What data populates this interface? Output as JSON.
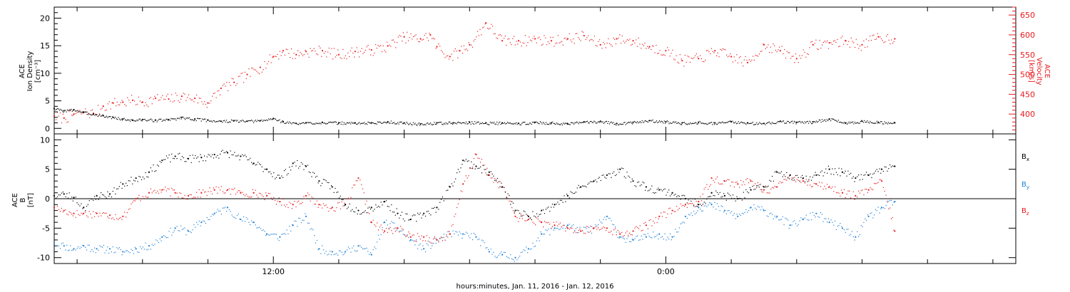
{
  "xlabel": "hours:minutes, Jan. 11, 2016 - Jan. 12, 2016",
  "colors": {
    "black": "#000000",
    "red": "#e8191c",
    "blue": "#1f7fd6"
  },
  "chart_data": [
    {
      "type": "scatter",
      "panel": "top",
      "ylabel_left": [
        "ACE",
        "Ion Density",
        "[cm⁻³]"
      ],
      "ylabel_right": [
        "ACE",
        "Velocity",
        "[km/s]"
      ],
      "x_unit": "hours since Jan. 11, 2016 00:00",
      "x_ticks": [
        "12:00",
        "0:00"
      ],
      "x_tick_hours": [
        12,
        24
      ],
      "xlim": [
        5.3,
        34.7
      ],
      "y_left": {
        "lim": [
          -1,
          22
        ],
        "ticks": [
          0,
          5,
          10,
          15,
          20
        ]
      },
      "y_right": {
        "lim": [
          350,
          670
        ],
        "ticks": [
          400,
          450,
          500,
          550,
          600,
          650
        ]
      },
      "grid": false,
      "series": [
        {
          "key": "density",
          "axis": "left",
          "color": "black",
          "x": [
            5.3,
            5.6,
            5.9,
            6.2,
            6.5,
            6.8,
            7.1,
            7.4,
            7.7,
            8.0,
            8.4,
            8.8,
            9.2,
            9.6,
            10.0,
            10.4,
            10.8,
            11.2,
            11.6,
            12.0,
            12.3,
            12.7,
            13.0,
            13.5,
            14.0,
            14.5,
            15.0,
            15.5,
            16.0,
            16.5,
            17.0,
            17.5,
            18.0,
            18.5,
            19.0,
            19.5,
            20.0,
            20.5,
            21.0,
            21.5,
            22.0,
            22.5,
            23.0,
            23.5,
            24.0,
            24.5,
            25.0,
            25.5,
            26.0,
            26.5,
            27.0,
            27.5,
            28.0,
            28.5,
            29.0,
            29.5,
            30.0,
            30.5,
            31.0
          ],
          "y": [
            3.6,
            3.2,
            3.4,
            2.9,
            2.6,
            2.3,
            2.0,
            1.7,
            1.5,
            1.6,
            1.5,
            1.6,
            2.0,
            1.7,
            1.5,
            1.3,
            1.4,
            1.3,
            1.4,
            1.8,
            1.2,
            0.9,
            1.0,
            1.1,
            1.0,
            1.0,
            1.0,
            1.2,
            1.0,
            0.8,
            1.0,
            1.0,
            1.1,
            1.0,
            1.0,
            0.9,
            1.1,
            1.0,
            0.8,
            1.2,
            1.3,
            0.9,
            1.1,
            1.4,
            1.2,
            1.0,
            1.1,
            1.0,
            1.2,
            1.0,
            0.9,
            1.3,
            1.1,
            1.2,
            1.7,
            1.0,
            1.3,
            1.1,
            1.0
          ]
        },
        {
          "key": "velocity",
          "axis": "right",
          "color": "red",
          "x": [
            5.3,
            5.6,
            5.9,
            6.2,
            6.5,
            6.8,
            7.1,
            7.4,
            7.7,
            8.0,
            8.4,
            8.8,
            9.2,
            9.6,
            10.0,
            10.4,
            10.8,
            11.2,
            11.6,
            12.0,
            12.3,
            12.7,
            13.0,
            13.5,
            14.0,
            14.5,
            15.0,
            15.5,
            16.0,
            16.5,
            16.8,
            17.0,
            17.4,
            17.7,
            18.0,
            18.5,
            19.0,
            19.5,
            20.0,
            20.5,
            21.0,
            21.5,
            22.0,
            22.5,
            23.0,
            23.5,
            24.0,
            24.5,
            25.0,
            25.5,
            26.0,
            26.5,
            27.0,
            27.5,
            28.0,
            28.5,
            29.0,
            29.5,
            30.0,
            30.5,
            31.0
          ],
          "y": [
            395,
            390,
            400,
            405,
            402,
            420,
            428,
            430,
            435,
            430,
            440,
            438,
            445,
            440,
            428,
            465,
            480,
            500,
            518,
            545,
            560,
            550,
            558,
            560,
            550,
            558,
            562,
            572,
            595,
            590,
            600,
            570,
            545,
            560,
            575,
            630,
            585,
            585,
            590,
            585,
            590,
            598,
            575,
            590,
            585,
            570,
            560,
            535,
            540,
            560,
            545,
            530,
            575,
            560,
            540,
            575,
            580,
            585,
            575,
            595,
            590
          ]
        }
      ]
    },
    {
      "type": "scatter",
      "panel": "bottom",
      "ylabel_left": [
        "ACE",
        "B",
        "[nT]"
      ],
      "x_unit": "hours since Jan. 11, 2016 00:00",
      "x_ticks": [
        "12:00",
        "0:00"
      ],
      "x_tick_hours": [
        12,
        24
      ],
      "xlim": [
        5.3,
        34.7
      ],
      "ylim": [
        -11,
        11
      ],
      "yticks": [
        -10,
        -5,
        0,
        5,
        10
      ],
      "zero_line": true,
      "legend_position": "right",
      "series": [
        {
          "name": "Bx",
          "label_main": "B",
          "label_sub": "x",
          "color": "black",
          "x": [
            5.3,
            5.6,
            5.9,
            6.2,
            6.6,
            7.0,
            7.4,
            7.8,
            8.2,
            8.6,
            9.0,
            9.4,
            9.8,
            10.2,
            10.6,
            11.0,
            11.4,
            11.8,
            12.2,
            12.6,
            13.0,
            13.4,
            13.8,
            14.2,
            14.6,
            15.0,
            15.4,
            15.8,
            16.2,
            16.6,
            17.0,
            17.4,
            17.8,
            18.2,
            18.6,
            19.0,
            19.4,
            19.8,
            20.2,
            20.6,
            21.0,
            21.4,
            21.8,
            22.2,
            22.6,
            23.0,
            23.4,
            23.8,
            24.2,
            24.6,
            25.0,
            25.4,
            25.8,
            26.2,
            26.6,
            27.0,
            27.4,
            27.8,
            28.2,
            28.6,
            29.0,
            29.4,
            29.8,
            30.2,
            30.6,
            31.0
          ],
          "y": [
            0.5,
            0.8,
            0.2,
            -1.5,
            0.5,
            0.8,
            2.5,
            3.5,
            4.5,
            6.5,
            7.2,
            6.8,
            7.0,
            7.5,
            7.8,
            7.2,
            6.0,
            5.0,
            3.5,
            6.0,
            5.5,
            3.0,
            2.0,
            -1.0,
            -2.0,
            -1.5,
            -0.5,
            -2.5,
            -3.5,
            -2.5,
            -1.5,
            2.0,
            6.5,
            5.5,
            4.5,
            2.0,
            -2.0,
            -3.0,
            -2.0,
            -1.0,
            0.5,
            2.0,
            3.0,
            4.0,
            5.0,
            3.0,
            2.0,
            1.5,
            1.0,
            0.0,
            -1.0,
            1.0,
            0.5,
            0.0,
            1.5,
            2.0,
            4.5,
            4.0,
            3.5,
            4.0,
            5.0,
            4.5,
            3.5,
            4.0,
            5.0,
            5.5
          ]
        },
        {
          "name": "By",
          "label_main": "B",
          "label_sub": "y",
          "color": "blue",
          "x": [
            5.3,
            5.6,
            5.9,
            6.2,
            6.6,
            7.0,
            7.4,
            7.8,
            8.2,
            8.6,
            9.0,
            9.4,
            9.8,
            10.2,
            10.6,
            11.0,
            11.4,
            11.8,
            12.2,
            12.6,
            13.0,
            13.4,
            13.8,
            14.2,
            14.6,
            15.0,
            15.4,
            15.8,
            16.2,
            16.6,
            17.0,
            17.4,
            17.8,
            18.2,
            18.6,
            19.0,
            19.4,
            19.8,
            20.2,
            20.6,
            21.0,
            21.4,
            21.8,
            22.2,
            22.6,
            23.0,
            23.4,
            23.8,
            24.2,
            24.6,
            25.0,
            25.4,
            25.8,
            26.2,
            26.6,
            27.0,
            27.4,
            27.8,
            28.2,
            28.6,
            29.0,
            29.4,
            29.8,
            30.2,
            30.6,
            31.0
          ],
          "y": [
            -7.5,
            -8.0,
            -8.5,
            -8.0,
            -8.5,
            -8.5,
            -9.0,
            -8.5,
            -8.0,
            -6.5,
            -5.0,
            -5.5,
            -4.0,
            -2.5,
            -1.5,
            -3.5,
            -4.0,
            -6.0,
            -6.5,
            -4.5,
            -3.0,
            -8.5,
            -9.0,
            -9.0,
            -8.0,
            -9.5,
            -4.0,
            -5.0,
            -7.0,
            -8.5,
            -7.0,
            -6.0,
            -6.0,
            -6.5,
            -9.0,
            -9.5,
            -10.0,
            -8.5,
            -6.0,
            -5.0,
            -4.5,
            -5.5,
            -5.0,
            -3.0,
            -6.5,
            -7.0,
            -6.5,
            -6.0,
            -6.5,
            -3.0,
            -1.5,
            -1.0,
            -2.0,
            -3.0,
            -1.5,
            -2.0,
            -3.0,
            -4.5,
            -3.5,
            -2.5,
            -4.0,
            -5.0,
            -6.5,
            -3.0,
            -1.5,
            -0.5
          ]
        },
        {
          "name": "Bz",
          "label_main": "B",
          "label_sub": "z",
          "color": "red",
          "x": [
            5.3,
            5.6,
            5.9,
            6.2,
            6.6,
            7.0,
            7.4,
            7.8,
            8.2,
            8.6,
            9.0,
            9.4,
            9.8,
            10.2,
            10.6,
            11.0,
            11.4,
            11.8,
            12.2,
            12.6,
            13.0,
            13.4,
            13.8,
            14.2,
            14.6,
            15.0,
            15.4,
            15.8,
            16.2,
            16.6,
            17.0,
            17.4,
            17.8,
            18.2,
            18.6,
            19.0,
            19.4,
            19.8,
            20.2,
            20.6,
            21.0,
            21.4,
            21.8,
            22.2,
            22.6,
            23.0,
            23.4,
            23.8,
            24.2,
            24.6,
            25.0,
            25.4,
            25.8,
            26.2,
            26.6,
            27.0,
            27.4,
            27.8,
            28.2,
            28.6,
            29.0,
            29.4,
            29.8,
            30.2,
            30.6,
            31.0
          ],
          "y": [
            -1.5,
            -2.0,
            -2.5,
            -2.5,
            -2.5,
            -2.8,
            -3.0,
            0.0,
            1.0,
            1.5,
            1.0,
            0.5,
            1.0,
            1.5,
            1.5,
            1.0,
            1.0,
            0.5,
            -0.5,
            -1.0,
            0.5,
            -1.0,
            -1.5,
            -1.0,
            3.5,
            -4.0,
            -5.5,
            -5.0,
            -6.5,
            -6.5,
            -7.0,
            -6.0,
            2.5,
            7.5,
            4.0,
            2.0,
            -3.0,
            -3.5,
            -4.0,
            -4.5,
            -5.0,
            -5.5,
            -5.0,
            -5.0,
            -6.0,
            -5.5,
            -4.5,
            -3.0,
            -2.0,
            -1.0,
            -0.5,
            3.5,
            3.0,
            2.5,
            3.0,
            1.5,
            2.0,
            4.0,
            3.0,
            2.5,
            2.0,
            1.0,
            0.5,
            1.5,
            3.0,
            -5.5
          ]
        }
      ]
    }
  ]
}
